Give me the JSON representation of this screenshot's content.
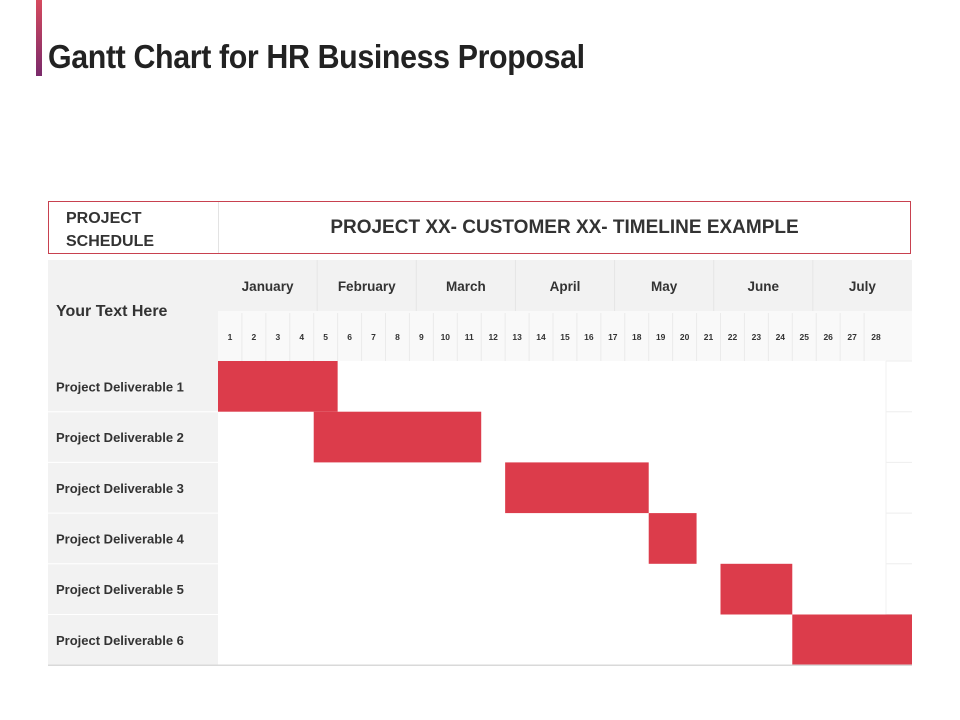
{
  "title": "Gantt Chart for HR Business Proposal",
  "header": {
    "left_line1": "PROJECT",
    "left_line2": "SCHEDULE",
    "right": "PROJECT XX- CUSTOMER XX- TIMELINE EXAMPLE"
  },
  "colors": {
    "bar": "#dc3c4b",
    "accent_top": "#d64a5e",
    "accent_bottom": "#7a2a6b",
    "header_border": "#c8414f",
    "panel_bg": "#f2f2f2"
  },
  "chart_data": {
    "type": "gantt",
    "row_header_label": "Your Text Here",
    "months": [
      "January",
      "February",
      "March",
      "April",
      "May",
      "June",
      "July"
    ],
    "units": [
      "1",
      "2",
      "3",
      "4",
      "5",
      "6",
      "7",
      "8",
      "9",
      "10",
      "11",
      "12",
      "13",
      "14",
      "15",
      "16",
      "17",
      "18",
      "19",
      "20",
      "21",
      "22",
      "23",
      "24",
      "25",
      "26",
      "27",
      "28"
    ],
    "tasks": [
      {
        "name": "Project Deliverable 1",
        "start": 1,
        "end": 5
      },
      {
        "name": "Project Deliverable 2",
        "start": 5,
        "end": 11
      },
      {
        "name": "Project Deliverable 3",
        "start": 13,
        "end": 18
      },
      {
        "name": "Project Deliverable 4",
        "start": 19,
        "end": 20
      },
      {
        "name": "Project Deliverable 5",
        "start": 22,
        "end": 24
      },
      {
        "name": "Project Deliverable 6",
        "start": 25,
        "end": 28
      }
    ]
  }
}
